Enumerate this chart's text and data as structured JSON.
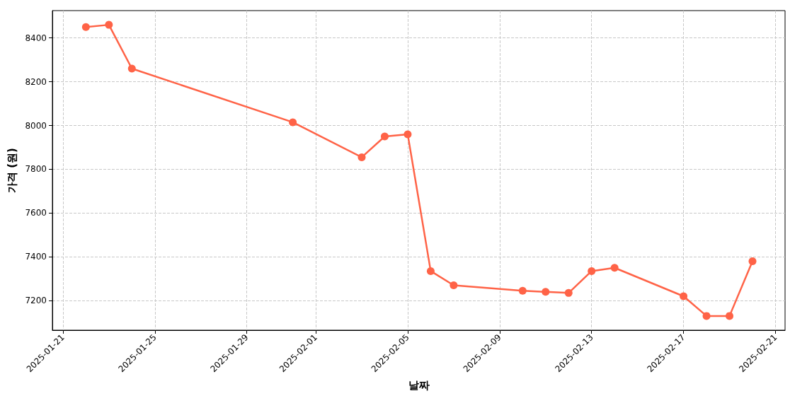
{
  "chart_data": {
    "type": "line",
    "xlabel": "날짜",
    "ylabel": "가격 (원)",
    "x": [
      "2025-01-22",
      "2025-01-23",
      "2025-01-24",
      "2025-01-31",
      "2025-02-03",
      "2025-02-04",
      "2025-02-05",
      "2025-02-06",
      "2025-02-07",
      "2025-02-10",
      "2025-02-11",
      "2025-02-12",
      "2025-02-13",
      "2025-02-14",
      "2025-02-17",
      "2025-02-18",
      "2025-02-19",
      "2025-02-20"
    ],
    "series": [
      {
        "color": "#ff6347",
        "values": [
          8450,
          8460,
          8260,
          8015,
          7855,
          7950,
          7960,
          7335,
          7270,
          7245,
          7240,
          7235,
          7335,
          7350,
          7220,
          7130,
          7130,
          7380
        ]
      }
    ],
    "xlim": [
      "2025-01-20T13:00",
      "2025-02-21T10:00"
    ],
    "xticks": [
      "2025-01-21",
      "2025-01-25",
      "2025-01-29",
      "2025-02-01",
      "2025-02-05",
      "2025-02-09",
      "2025-02-13",
      "2025-02-17",
      "2025-02-21"
    ],
    "ylim": [
      7065,
      8525
    ],
    "yticks": [
      7200,
      7400,
      7600,
      7800,
      8000,
      8200,
      8400
    ],
    "grid": true,
    "marker": "circle",
    "line_style": "solid"
  }
}
